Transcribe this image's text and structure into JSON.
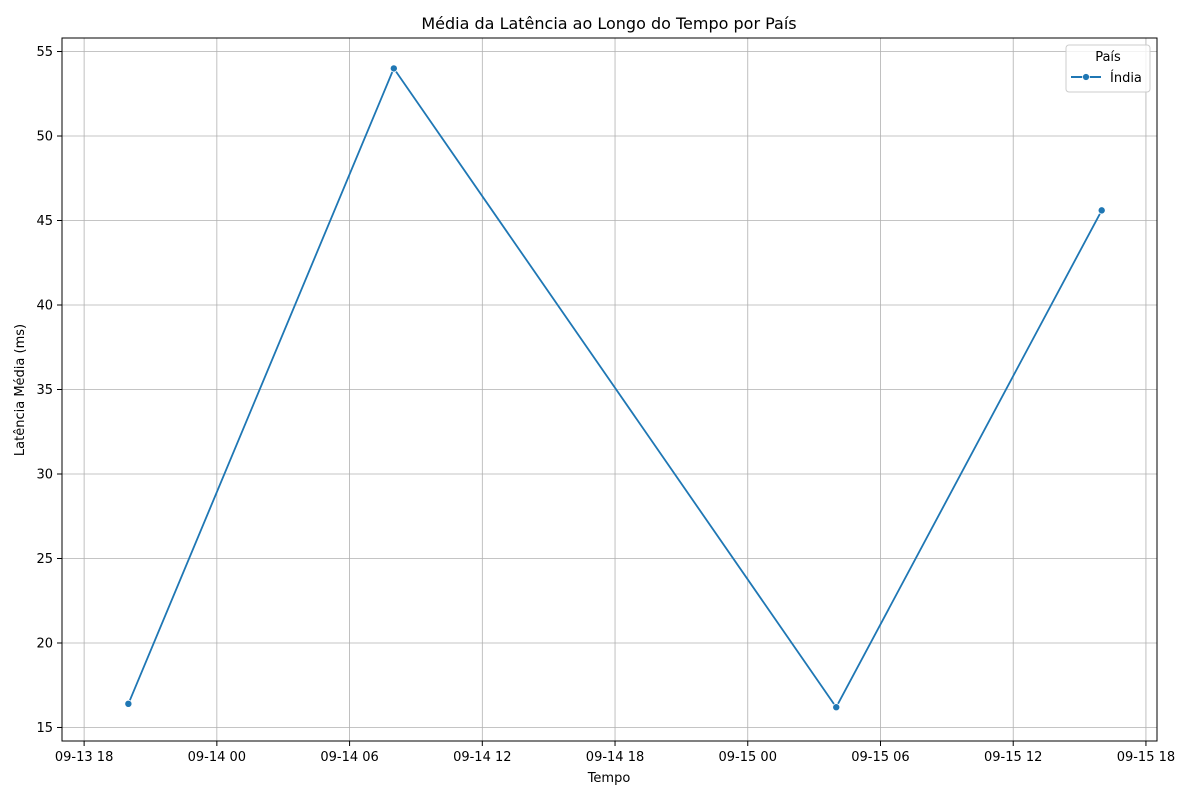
{
  "chart_data": {
    "type": "line",
    "title": "Média da Latência ao Longo do Tempo por País",
    "xlabel": "Tempo",
    "ylabel": "Latência Média (ms)",
    "legend": {
      "title": "País",
      "placement": "top-right",
      "entries": [
        "Índia"
      ]
    },
    "grid": true,
    "x_type": "datetime",
    "xlim": [
      "2023-09-13T17:00:00",
      "2023-09-15T18:30:00"
    ],
    "ylim": [
      14.2,
      55.8
    ],
    "x_ticks": [
      {
        "value": "2023-09-13T18:00:00",
        "label": "09-13 18"
      },
      {
        "value": "2023-09-14T00:00:00",
        "label": "09-14 00"
      },
      {
        "value": "2023-09-14T06:00:00",
        "label": "09-14 06"
      },
      {
        "value": "2023-09-14T12:00:00",
        "label": "09-14 12"
      },
      {
        "value": "2023-09-14T18:00:00",
        "label": "09-14 18"
      },
      {
        "value": "2023-09-15T00:00:00",
        "label": "09-15 00"
      },
      {
        "value": "2023-09-15T06:00:00",
        "label": "09-15 06"
      },
      {
        "value": "2023-09-15T12:00:00",
        "label": "09-15 12"
      },
      {
        "value": "2023-09-15T18:00:00",
        "label": "09-15 18"
      }
    ],
    "y_ticks": [
      15,
      20,
      25,
      30,
      35,
      40,
      45,
      50,
      55
    ],
    "series": [
      {
        "name": "Índia",
        "color": "#1f77b4",
        "marker": "circle",
        "x": [
          "2023-09-13T20:00:00",
          "2023-09-14T08:00:00",
          "2023-09-15T04:00:00",
          "2023-09-15T16:00:00"
        ],
        "y": [
          16.4,
          54.0,
          16.2,
          45.6
        ]
      }
    ]
  }
}
